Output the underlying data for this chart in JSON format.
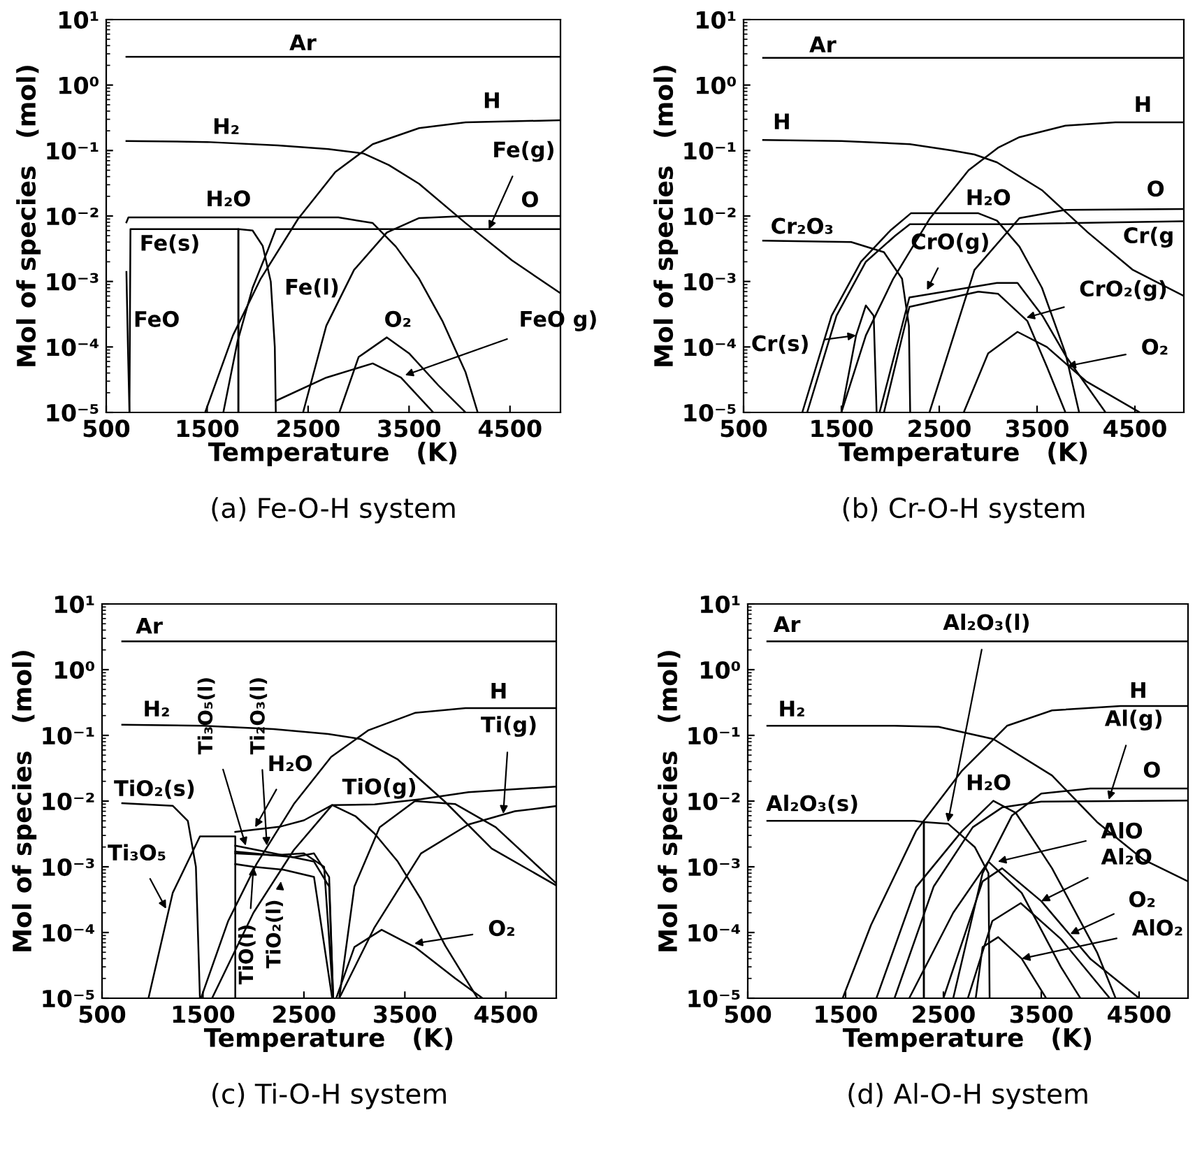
{
  "chart_data": [
    {
      "type": "line",
      "title": "(a) Fe-O-H system",
      "xlabel": "Temperature   (K)",
      "ylabel": "Mol of species   (mol)",
      "log": "y",
      "xlim": [
        500,
        5000
      ],
      "xticks": [
        500,
        1500,
        2500,
        3500,
        4500
      ],
      "ylim": [
        1e-05,
        10
      ],
      "yticks": [
        {
          "value": 10,
          "label": "10¹"
        },
        {
          "value": 1,
          "label": "10⁰"
        },
        {
          "value": 0.1,
          "label": "10⁻¹"
        },
        {
          "value": 0.01,
          "label": "10⁻²"
        },
        {
          "value": 0.001,
          "label": "10⁻³"
        },
        {
          "value": 0.0001,
          "label": "10⁻⁴"
        },
        {
          "value": 1e-05,
          "label": "10⁻⁵"
        }
      ],
      "series": [
        {
          "color": "#000000",
          "x": [
            700,
            5000
          ],
          "values": [
            2.7,
            2.7
          ]
        },
        {
          "color": "#000000",
          "x": [
            700,
            1500,
            2200,
            2700,
            3050,
            3300,
            3600,
            4060,
            4520,
            5000
          ],
          "values": [
            0.14,
            0.135,
            0.12,
            0.105,
            0.09,
            0.06,
            0.031,
            0.0078,
            0.0021,
            0.00066
          ]
        },
        {
          "color": "#000000",
          "x": [
            1480,
            1755,
            2030,
            2400,
            2770,
            3140,
            3600,
            4060,
            5000
          ],
          "values": [
            1e-05,
            0.00015,
            0.0011,
            0.009,
            0.047,
            0.125,
            0.22,
            0.27,
            0.29
          ]
        },
        {
          "color": "#000000",
          "x": [
            700,
            720,
            2800,
            3140,
            3370,
            3600,
            3830,
            4060,
            4180
          ],
          "values": [
            0.008,
            0.0095,
            0.0095,
            0.0078,
            0.0034,
            0.0011,
            0.00025,
            4.1e-05,
            1e-05
          ]
        },
        {
          "color": "#000000",
          "x": [
            700,
            715,
            730
          ],
          "values": [
            0.0014,
            0.0001,
            1e-05
          ]
        },
        {
          "color": "#000000",
          "x": [
            730,
            740,
            1809,
            1809
          ],
          "values": [
            1e-05,
            0.0063,
            0.0063,
            1e-05
          ]
        },
        {
          "color": "#000000",
          "x": [
            1809,
            1809,
            1950,
            2050,
            2130,
            2170,
            2180
          ],
          "values": [
            1e-05,
            0.0063,
            0.006,
            0.0035,
            0.001,
            0.0001,
            1e-05
          ]
        },
        {
          "color": "#000000",
          "x": [
            1660,
            1800,
            1950,
            2100,
            2180,
            5000
          ],
          "values": [
            1e-05,
            0.00012,
            0.0008,
            0.003,
            0.0063,
            0.0063
          ]
        },
        {
          "color": "#000000",
          "x": [
            2450,
            2680,
            2955,
            3280,
            3600,
            4060,
            5000
          ],
          "values": [
            1e-05,
            0.00021,
            0.0015,
            0.0056,
            0.0093,
            0.01,
            0.01
          ]
        },
        {
          "color": "#000000",
          "x": [
            2810,
            3000,
            3280,
            3500,
            3800,
            4060
          ],
          "values": [
            1e-05,
            7e-05,
            0.00014,
            8e-05,
            2.5e-05,
            1e-05
          ]
        },
        {
          "color": "#000000",
          "x": [
            2180,
            2680,
            3140,
            3420,
            3740
          ],
          "values": [
            1.5e-05,
            3.4e-05,
            5.6e-05,
            3.4e-05,
            1e-05
          ]
        }
      ],
      "annotations": [
        "Ar",
        "H₂",
        "H",
        {
          "text": "Fe(g)",
          "x": 4290,
          "y": 0.0063
        },
        "O",
        "H₂O",
        "Fe(s)",
        "FeO",
        "Fe(l)",
        "O₂",
        {
          "text": "FeO g)",
          "x": 3460,
          "y": 3.7e-05
        }
      ]
    },
    {
      "type": "line",
      "title": "(b) Cr-O-H system",
      "xlabel": "Temperature   (K)",
      "ylabel": "Mol of species   (mol)",
      "log": "y",
      "xlim": [
        500,
        5000
      ],
      "xticks": [
        500,
        1500,
        2500,
        3500,
        4500
      ],
      "ylim": [
        1e-05,
        10
      ],
      "yticks": [
        {
          "value": 10,
          "label": "10¹"
        },
        {
          "value": 1,
          "label": "10⁰"
        },
        {
          "value": 0.1,
          "label": "10⁻¹"
        },
        {
          "value": 0.01,
          "label": "10⁻²"
        },
        {
          "value": 0.001,
          "label": "10⁻³"
        },
        {
          "value": 0.0001,
          "label": "10⁻⁴"
        },
        {
          "value": 1e-05,
          "label": "10⁻⁵"
        }
      ],
      "series": [
        {
          "color": "#000000",
          "x": [
            700,
            5000
          ],
          "values": [
            2.6,
            2.6
          ]
        },
        {
          "color": "#000000",
          "x": [
            700,
            1500,
            2200,
            2630,
            2860,
            3090,
            3555,
            4020,
            4480,
            5000
          ],
          "values": [
            0.145,
            0.14,
            0.125,
            0.1,
            0.087,
            0.066,
            0.0245,
            0.0056,
            0.0015,
            0.0006
          ]
        },
        {
          "color": "#000000",
          "x": [
            1500,
            1750,
            2030,
            2400,
            2800,
            3100,
            3320,
            3790,
            4300,
            5000
          ],
          "values": [
            1e-05,
            0.00015,
            0.0011,
            0.009,
            0.05,
            0.11,
            0.16,
            0.24,
            0.27,
            0.27
          ]
        },
        {
          "color": "#000000",
          "x": [
            1100,
            1400,
            1700,
            2000,
            2210,
            2900,
            3090,
            3320,
            3550,
            3790,
            3930
          ],
          "values": [
            1e-05,
            0.0003,
            0.002,
            0.006,
            0.011,
            0.011,
            0.0085,
            0.0034,
            0.0008,
            8e-05,
            1e-05
          ]
        },
        {
          "color": "#000000",
          "x": [
            1150,
            1450,
            1750,
            2050,
            2200,
            3200,
            5000
          ],
          "values": [
            1e-05,
            0.0003,
            0.002,
            0.005,
            0.0075,
            0.0075,
            0.0083
          ]
        },
        {
          "color": "#000000",
          "x": [
            700,
            1600,
            1935,
            2120,
            2190,
            2203
          ],
          "values": [
            0.0042,
            0.004,
            0.0028,
            0.0011,
            0.00021,
            1e-05
          ]
        },
        {
          "color": "#000000",
          "x": [
            1500,
            1650,
            1750,
            1830,
            1860
          ],
          "values": [
            1e-05,
            0.00015,
            0.00043,
            0.0003,
            1e-05
          ]
        },
        {
          "color": "#000000",
          "x": [
            1890,
            2195,
            3090,
            3300,
            3555,
            3800,
            4200
          ],
          "values": [
            1e-05,
            0.00057,
            0.00095,
            0.00095,
            0.0003,
            7e-05,
            1e-05
          ]
        },
        {
          "color": "#000000",
          "x": [
            1935,
            2195,
            2900,
            3100,
            3400,
            3600,
            3790
          ],
          "values": [
            1e-05,
            0.00041,
            0.0007,
            0.00065,
            0.00025,
            5e-05,
            1e-05
          ]
        },
        {
          "color": "#000000",
          "x": [
            2750,
            3000,
            3300,
            3600,
            4000,
            4550
          ],
          "values": [
            1e-05,
            8e-05,
            0.00017,
            0.0001,
            3e-05,
            1e-05
          ]
        },
        {
          "color": "#000000",
          "x": [
            2400,
            2860,
            3320,
            3790,
            5000
          ],
          "values": [
            1e-05,
            0.0015,
            0.0093,
            0.0124,
            0.0128
          ]
        }
      ],
      "annotations": [
        "Ar",
        "H",
        "H",
        "O",
        "Cr(g",
        "H₂O",
        "Cr₂O₃",
        {
          "text": "CrO(g)",
          "x": 2375,
          "y": 0.00074
        },
        {
          "text": "Cr(s)",
          "x": 1650,
          "y": 0.00015
        },
        {
          "text": "CrO₂(g)",
          "x": 3390,
          "y": 0.00028
        },
        {
          "text": "O₂",
          "x": 3810,
          "y": 5.1e-05
        }
      ]
    },
    {
      "type": "line",
      "title": "(c) Ti-O-H system",
      "xlabel": "Temperature   (K)",
      "ylabel": "Mol of species   (mol)",
      "log": "y",
      "xlim": [
        500,
        5000
      ],
      "xticks": [
        500,
        1500,
        2500,
        3500,
        4500
      ],
      "ylim": [
        1e-05,
        10
      ],
      "yticks": [
        {
          "value": 10,
          "label": "10¹"
        },
        {
          "value": 1,
          "label": "10⁰"
        },
        {
          "value": 0.1,
          "label": "10⁻¹"
        },
        {
          "value": 0.01,
          "label": "10⁻²"
        },
        {
          "value": 0.001,
          "label": "10⁻³"
        },
        {
          "value": 0.0001,
          "label": "10⁻⁴"
        },
        {
          "value": 1e-05,
          "label": "10⁻⁵"
        }
      ],
      "series": [
        {
          "color": "#000000",
          "x": [
            700,
            5000
          ],
          "values": [
            2.7,
            2.7
          ]
        },
        {
          "color": "#000000",
          "x": [
            700,
            1500,
            2200,
            2740,
            3060,
            3430,
            3900,
            4360,
            5000
          ],
          "values": [
            0.145,
            0.14,
            0.125,
            0.105,
            0.088,
            0.043,
            0.0097,
            0.0019,
            0.00052
          ]
        },
        {
          "color": "#000000",
          "x": [
            1480,
            1750,
            2030,
            2400,
            2770,
            3140,
            3600,
            4100,
            5000
          ],
          "values": [
            1e-05,
            0.00015,
            0.0011,
            0.009,
            0.047,
            0.12,
            0.22,
            0.26,
            0.26
          ]
        },
        {
          "color": "#000000",
          "x": [
            700,
            1200,
            1350,
            1430,
            1470
          ],
          "values": [
            0.0093,
            0.0085,
            0.005,
            0.001,
            1e-05
          ]
        },
        {
          "color": "#000000",
          "x": [
            960,
            1200,
            1470,
            1820,
            1820
          ],
          "values": [
            1e-05,
            0.0004,
            0.0029,
            0.0029,
            1e-05
          ]
        },
        {
          "color": "#000000",
          "x": [
            1820,
            2200,
            2600,
            2750,
            2790
          ],
          "values": [
            0.0021,
            0.0016,
            0.0012,
            0.0005,
            1e-05
          ]
        },
        {
          "color": "#000000",
          "x": [
            1820,
            2200,
            2500,
            2700,
            2790
          ],
          "values": [
            0.0016,
            0.0015,
            0.0016,
            0.001,
            1e-05
          ]
        },
        {
          "color": "#000000",
          "x": [
            1820,
            2000,
            2300,
            2600,
            2780
          ],
          "values": [
            0.0011,
            0.001,
            0.0009,
            0.0007,
            1e-05
          ]
        },
        {
          "color": "#000000",
          "x": [
            1820,
            2400,
            2600,
            2750,
            2790
          ],
          "values": [
            0.0017,
            0.0014,
            0.0016,
            0.0007,
            1e-05
          ]
        },
        {
          "color": "#000000",
          "x": [
            1820,
            2270,
            2500,
            2780,
            3010,
            3200,
            3430,
            3660,
            3900,
            4220
          ],
          "values": [
            0.0034,
            0.0041,
            0.0051,
            0.0087,
            0.0059,
            0.0032,
            0.0012,
            0.00032,
            6.3e-05,
            1e-05
          ]
        },
        {
          "color": "#000000",
          "x": [
            1590,
            2000,
            2400,
            2780,
            3200,
            3660,
            4130,
            5000
          ],
          "values": [
            1e-05,
            0.0002,
            0.0018,
            0.0087,
            0.0089,
            0.0107,
            0.0137,
            0.0166
          ]
        },
        {
          "color": "#000000",
          "x": [
            2850,
            3200,
            3660,
            4130,
            4590,
            5000
          ],
          "values": [
            1e-05,
            0.00012,
            0.0016,
            0.0044,
            0.007,
            0.0084
          ]
        },
        {
          "color": "#000000",
          "x": [
            2850,
            3000,
            3250,
            3600,
            4000,
            4400,
            5000
          ],
          "values": [
            1e-05,
            0.0005,
            0.004,
            0.01,
            0.009,
            0.004,
            0.00056
          ]
        },
        {
          "color": "#000000",
          "x": [
            2820,
            3000,
            3270,
            3600,
            4000,
            4270
          ],
          "values": [
            1e-05,
            6e-05,
            0.00011,
            6e-05,
            2e-05,
            1e-05
          ]
        }
      ],
      "annotations": [
        "Ar",
        "H₂",
        "H",
        {
          "text": "Ti(g)",
          "x": 4475,
          "y": 0.0064
        },
        "TiO₂(s)",
        {
          "text": "Ti₃O₅(l)",
          "x": 1924,
          "y": 0.0021
        },
        {
          "text": "Ti₂O₃(l)",
          "x": 2133,
          "y": 0.0021
        },
        {
          "text": "H₂O",
          "x": 2017,
          "y": 0.004
        },
        "TiO(g)",
        {
          "text": "Ti₃O₅",
          "x": 1135,
          "y": 0.00023
        },
        {
          "text": "TiO(l)",
          "x": 2000,
          "y": 0.001
        },
        {
          "text": "TiO₂(l)",
          "x": 2272,
          "y": 0.0006
        },
        {
          "text": "O₂",
          "x": 3594,
          "y": 6.8e-05
        }
      ]
    },
    {
      "type": "line",
      "title": "(d) Al-O-H system",
      "xlabel": "Temperature   (K)",
      "ylabel": "Mol of species   (mol)",
      "log": "y",
      "xlim": [
        500,
        5000
      ],
      "xticks": [
        500,
        1500,
        2500,
        3500,
        4500
      ],
      "ylim": [
        1e-05,
        10
      ],
      "yticks": [
        {
          "value": 10,
          "label": "10¹"
        },
        {
          "value": 1,
          "label": "10⁰"
        },
        {
          "value": 0.1,
          "label": "10⁻¹"
        },
        {
          "value": 0.01,
          "label": "10⁻²"
        },
        {
          "value": 0.001,
          "label": "10⁻³"
        },
        {
          "value": 0.0001,
          "label": "10⁻⁴"
        },
        {
          "value": 1e-05,
          "label": "10⁻⁵"
        }
      ],
      "series": [
        {
          "color": "#000000",
          "x": [
            700,
            5000
          ],
          "values": [
            2.7,
            2.7
          ]
        },
        {
          "color": "#000000",
          "x": [
            700,
            2000,
            2450,
            3010,
            3610,
            4070,
            4540,
            5000
          ],
          "values": [
            0.14,
            0.14,
            0.135,
            0.088,
            0.0245,
            0.0048,
            0.0013,
            0.0006
          ]
        },
        {
          "color": "#000000",
          "x": [
            1470,
            1760,
            2220,
            2690,
            3150,
            3610,
            4310,
            5000
          ],
          "values": [
            1e-05,
            0.00013,
            0.0035,
            0.029,
            0.14,
            0.24,
            0.28,
            0.28
          ]
        },
        {
          "color": "#000000",
          "x": [
            700,
            2200,
            2300,
            2300
          ],
          "values": [
            0.005,
            0.005,
            0.0048,
            1e-05
          ]
        },
        {
          "color": "#000000",
          "x": [
            2300,
            2300,
            2550,
            2820,
            2960,
            2972
          ],
          "values": [
            1e-05,
            0.0048,
            0.0045,
            0.002,
            0.0008,
            1e-05
          ]
        },
        {
          "color": "#000000",
          "x": [
            1815,
            2220,
            2690,
            3010,
            3240,
            3610,
            4070,
            4260
          ],
          "values": [
            1e-05,
            0.00049,
            0.0035,
            0.0101,
            0.0066,
            0.00095,
            5e-05,
            1e-05
          ]
        },
        {
          "color": "#000000",
          "x": [
            2600,
            2900,
            3200,
            3500,
            4000,
            5000
          ],
          "values": [
            1e-05,
            0.0008,
            0.006,
            0.013,
            0.0155,
            0.0155
          ]
        },
        {
          "color": "#000000",
          "x": [
            2000,
            2400,
            2800,
            3100,
            3500,
            5000
          ],
          "values": [
            1e-05,
            0.0005,
            0.004,
            0.008,
            0.0098,
            0.0102
          ]
        },
        {
          "color": "#000000",
          "x": [
            2150,
            2600,
            2960,
            3300,
            3700,
            3900
          ],
          "values": [
            1e-05,
            0.0002,
            0.0012,
            0.0004,
            3e-05,
            1e-05
          ]
        },
        {
          "color": "#000000",
          "x": [
            2500,
            2900,
            3100,
            3500,
            4000,
            4500
          ],
          "values": [
            1e-05,
            0.0006,
            0.00095,
            0.0003,
            4e-05,
            1e-05
          ]
        },
        {
          "color": "#000000",
          "x": [
            2750,
            3000,
            3290,
            3700,
            4200
          ],
          "values": [
            1e-05,
            0.00015,
            0.00028,
            8e-05,
            1e-05
          ]
        },
        {
          "color": "#000000",
          "x": [
            2830,
            2900,
            3060,
            3300,
            3550
          ],
          "values": [
            1e-05,
            6e-05,
            8.5e-05,
            4e-05,
            1e-05
          ]
        }
      ],
      "annotations": [
        "Ar",
        {
          "text": "Al₂O₃(l)",
          "x": 2546,
          "y": 0.0048
        },
        "H",
        "H₂",
        {
          "text": "Al(g)",
          "x": 4190,
          "y": 0.0105
        },
        "O",
        "H₂O",
        "Al₂O₃(s)",
        {
          "text": "AlO",
          "x": 3056,
          "y": 0.0012
        },
        {
          "text": "Al₂O",
          "x": 3500,
          "y": 0.0003
        },
        {
          "text": "O₂",
          "x": 3796,
          "y": 9.5e-05
        },
        {
          "text": "AlO₂",
          "x": 3300,
          "y": 4e-05
        }
      ]
    }
  ]
}
